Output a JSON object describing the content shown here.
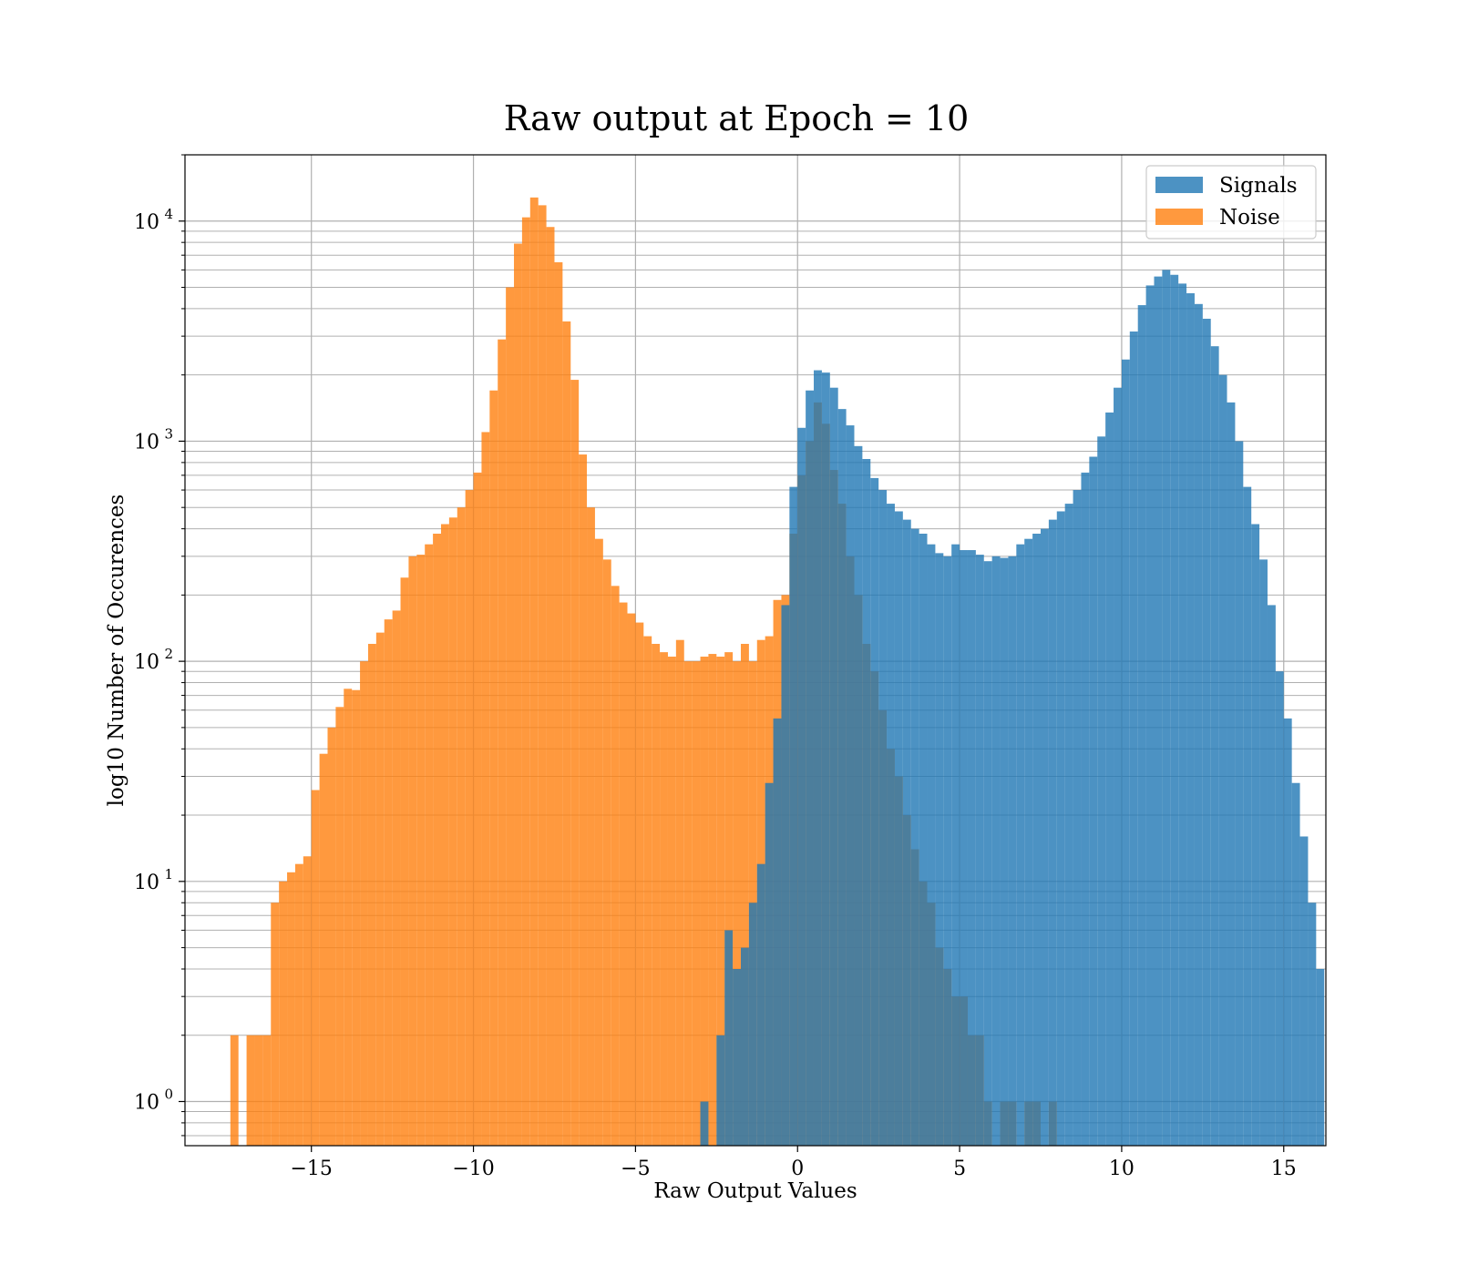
{
  "chart_data": {
    "type": "bar",
    "title": "Raw output at Epoch = 10",
    "xlabel": "Raw Output Values",
    "ylabel": "log10 Number of Occurences",
    "xlim": [
      -18.9,
      16.3
    ],
    "ylim": [
      0.63,
      20000
    ],
    "yscale": "log",
    "xticks": [
      -15,
      -10,
      -5,
      0,
      5,
      10,
      15
    ],
    "xtick_labels": [
      "−15",
      "−10",
      "−5",
      "0",
      "5",
      "10",
      "15"
    ],
    "yticks": [
      {
        "value": 1,
        "base": "10",
        "exp": "0"
      },
      {
        "value": 10,
        "base": "10",
        "exp": "1"
      },
      {
        "value": 100,
        "base": "10",
        "exp": "2"
      },
      {
        "value": 1000,
        "base": "10",
        "exp": "3"
      },
      {
        "value": 10000,
        "base": "10",
        "exp": "4"
      }
    ],
    "grid": true,
    "legend_position": "top-right",
    "colors": {
      "signals": "#1f77b4",
      "noise": "#ff7f0e",
      "grid": "#b0b0b0"
    },
    "bin_width": 0.25,
    "series": [
      {
        "name": "Signals",
        "color": "#1f77b4",
        "opacity": 0.8,
        "bins": [
          {
            "x": -3.0,
            "y": 1
          },
          {
            "x": -2.5,
            "y": 2
          },
          {
            "x": -2.25,
            "y": 6
          },
          {
            "x": -2.0,
            "y": 4
          },
          {
            "x": -1.75,
            "y": 5
          },
          {
            "x": -1.5,
            "y": 8
          },
          {
            "x": -1.25,
            "y": 12
          },
          {
            "x": -1.0,
            "y": 28
          },
          {
            "x": -0.75,
            "y": 55
          },
          {
            "x": -0.5,
            "y": 180
          },
          {
            "x": -0.25,
            "y": 620
          },
          {
            "x": 0.0,
            "y": 1150
          },
          {
            "x": 0.25,
            "y": 1700
          },
          {
            "x": 0.5,
            "y": 2100
          },
          {
            "x": 0.75,
            "y": 2050
          },
          {
            "x": 1.0,
            "y": 1750
          },
          {
            "x": 1.25,
            "y": 1400
          },
          {
            "x": 1.5,
            "y": 1180
          },
          {
            "x": 1.75,
            "y": 950
          },
          {
            "x": 2.0,
            "y": 830
          },
          {
            "x": 2.25,
            "y": 680
          },
          {
            "x": 2.5,
            "y": 600
          },
          {
            "x": 2.75,
            "y": 520
          },
          {
            "x": 3.0,
            "y": 480
          },
          {
            "x": 3.25,
            "y": 440
          },
          {
            "x": 3.5,
            "y": 400
          },
          {
            "x": 3.75,
            "y": 380
          },
          {
            "x": 4.0,
            "y": 340
          },
          {
            "x": 4.25,
            "y": 310
          },
          {
            "x": 4.5,
            "y": 300
          },
          {
            "x": 4.75,
            "y": 340
          },
          {
            "x": 5.0,
            "y": 320
          },
          {
            "x": 5.25,
            "y": 320
          },
          {
            "x": 5.5,
            "y": 305
          },
          {
            "x": 5.75,
            "y": 285
          },
          {
            "x": 6.0,
            "y": 300
          },
          {
            "x": 6.25,
            "y": 295
          },
          {
            "x": 6.5,
            "y": 300
          },
          {
            "x": 6.75,
            "y": 340
          },
          {
            "x": 7.0,
            "y": 360
          },
          {
            "x": 7.25,
            "y": 380
          },
          {
            "x": 7.5,
            "y": 400
          },
          {
            "x": 7.75,
            "y": 440
          },
          {
            "x": 8.0,
            "y": 480
          },
          {
            "x": 8.25,
            "y": 520
          },
          {
            "x": 8.5,
            "y": 600
          },
          {
            "x": 8.75,
            "y": 720
          },
          {
            "x": 9.0,
            "y": 850
          },
          {
            "x": 9.25,
            "y": 1050
          },
          {
            "x": 9.5,
            "y": 1350
          },
          {
            "x": 9.75,
            "y": 1750
          },
          {
            "x": 10.0,
            "y": 2350
          },
          {
            "x": 10.25,
            "y": 3150
          },
          {
            "x": 10.5,
            "y": 4150
          },
          {
            "x": 10.75,
            "y": 5100
          },
          {
            "x": 11.0,
            "y": 5600
          },
          {
            "x": 11.25,
            "y": 6000
          },
          {
            "x": 11.5,
            "y": 5700
          },
          {
            "x": 11.75,
            "y": 5200
          },
          {
            "x": 12.0,
            "y": 4700
          },
          {
            "x": 12.25,
            "y": 4200
          },
          {
            "x": 12.5,
            "y": 3600
          },
          {
            "x": 12.75,
            "y": 2700
          },
          {
            "x": 13.0,
            "y": 2000
          },
          {
            "x": 13.25,
            "y": 1500
          },
          {
            "x": 13.5,
            "y": 1000
          },
          {
            "x": 13.75,
            "y": 620
          },
          {
            "x": 14.0,
            "y": 420
          },
          {
            "x": 14.25,
            "y": 290
          },
          {
            "x": 14.5,
            "y": 180
          },
          {
            "x": 14.75,
            "y": 90
          },
          {
            "x": 15.0,
            "y": 55
          },
          {
            "x": 15.25,
            "y": 28
          },
          {
            "x": 15.5,
            "y": 16
          },
          {
            "x": 15.75,
            "y": 8
          },
          {
            "x": 16.0,
            "y": 4
          }
        ]
      },
      {
        "name": "Noise",
        "color": "#ff7f0e",
        "opacity": 0.8,
        "bins": [
          {
            "x": -17.5,
            "y": 2
          },
          {
            "x": -17.0,
            "y": 2
          },
          {
            "x": -16.75,
            "y": 2
          },
          {
            "x": -16.5,
            "y": 2
          },
          {
            "x": -16.25,
            "y": 8
          },
          {
            "x": -16.0,
            "y": 10
          },
          {
            "x": -15.75,
            "y": 11
          },
          {
            "x": -15.5,
            "y": 12
          },
          {
            "x": -15.25,
            "y": 13
          },
          {
            "x": -15.0,
            "y": 26
          },
          {
            "x": -14.75,
            "y": 38
          },
          {
            "x": -14.5,
            "y": 50
          },
          {
            "x": -14.25,
            "y": 62
          },
          {
            "x": -14.0,
            "y": 75
          },
          {
            "x": -13.75,
            "y": 74
          },
          {
            "x": -13.5,
            "y": 100
          },
          {
            "x": -13.25,
            "y": 120
          },
          {
            "x": -13.0,
            "y": 135
          },
          {
            "x": -12.75,
            "y": 155
          },
          {
            "x": -12.5,
            "y": 170
          },
          {
            "x": -12.25,
            "y": 240
          },
          {
            "x": -12.0,
            "y": 300
          },
          {
            "x": -11.75,
            "y": 305
          },
          {
            "x": -11.5,
            "y": 340
          },
          {
            "x": -11.25,
            "y": 380
          },
          {
            "x": -11.0,
            "y": 420
          },
          {
            "x": -10.75,
            "y": 450
          },
          {
            "x": -10.5,
            "y": 500
          },
          {
            "x": -10.25,
            "y": 600
          },
          {
            "x": -10.0,
            "y": 720
          },
          {
            "x": -9.75,
            "y": 1100
          },
          {
            "x": -9.5,
            "y": 1700
          },
          {
            "x": -9.25,
            "y": 2900
          },
          {
            "x": -9.0,
            "y": 5000
          },
          {
            "x": -8.75,
            "y": 7900
          },
          {
            "x": -8.5,
            "y": 10400
          },
          {
            "x": -8.25,
            "y": 12800
          },
          {
            "x": -8.0,
            "y": 11800
          },
          {
            "x": -7.75,
            "y": 9400
          },
          {
            "x": -7.5,
            "y": 6500
          },
          {
            "x": -7.25,
            "y": 3500
          },
          {
            "x": -7.0,
            "y": 1900
          },
          {
            "x": -6.75,
            "y": 870
          },
          {
            "x": -6.5,
            "y": 500
          },
          {
            "x": -6.25,
            "y": 360
          },
          {
            "x": -6.0,
            "y": 290
          },
          {
            "x": -5.75,
            "y": 220
          },
          {
            "x": -5.5,
            "y": 185
          },
          {
            "x": -5.25,
            "y": 165
          },
          {
            "x": -5.0,
            "y": 150
          },
          {
            "x": -4.75,
            "y": 130
          },
          {
            "x": -4.5,
            "y": 120
          },
          {
            "x": -4.25,
            "y": 110
          },
          {
            "x": -4.0,
            "y": 105
          },
          {
            "x": -3.75,
            "y": 125
          },
          {
            "x": -3.5,
            "y": 100
          },
          {
            "x": -3.25,
            "y": 100
          },
          {
            "x": -3.0,
            "y": 105
          },
          {
            "x": -2.75,
            "y": 108
          },
          {
            "x": -2.5,
            "y": 105
          },
          {
            "x": -2.25,
            "y": 110
          },
          {
            "x": -2.0,
            "y": 100
          },
          {
            "x": -1.75,
            "y": 120
          },
          {
            "x": -1.5,
            "y": 100
          },
          {
            "x": -1.25,
            "y": 125
          },
          {
            "x": -1.0,
            "y": 130
          },
          {
            "x": -0.75,
            "y": 190
          },
          {
            "x": -0.5,
            "y": 200
          },
          {
            "x": -0.25,
            "y": 380
          },
          {
            "x": 0.0,
            "y": 700
          },
          {
            "x": 0.25,
            "y": 1000
          },
          {
            "x": 0.5,
            "y": 1500
          },
          {
            "x": 0.75,
            "y": 1200
          },
          {
            "x": 1.0,
            "y": 740
          },
          {
            "x": 1.25,
            "y": 520
          },
          {
            "x": 1.5,
            "y": 300
          },
          {
            "x": 1.75,
            "y": 200
          },
          {
            "x": 2.0,
            "y": 120
          },
          {
            "x": 2.25,
            "y": 90
          },
          {
            "x": 2.5,
            "y": 60
          },
          {
            "x": 2.75,
            "y": 40
          },
          {
            "x": 3.0,
            "y": 30
          },
          {
            "x": 3.25,
            "y": 20
          },
          {
            "x": 3.5,
            "y": 14
          },
          {
            "x": 3.75,
            "y": 10
          },
          {
            "x": 4.0,
            "y": 8
          },
          {
            "x": 4.25,
            "y": 5
          },
          {
            "x": 4.5,
            "y": 4
          },
          {
            "x": 4.75,
            "y": 3
          },
          {
            "x": 5.0,
            "y": 3
          },
          {
            "x": 5.25,
            "y": 2
          },
          {
            "x": 5.5,
            "y": 2
          },
          {
            "x": 5.75,
            "y": 1
          },
          {
            "x": 6.25,
            "y": 1
          },
          {
            "x": 6.5,
            "y": 1
          },
          {
            "x": 7.0,
            "y": 1
          },
          {
            "x": 7.25,
            "y": 1
          },
          {
            "x": 7.75,
            "y": 1
          }
        ]
      }
    ]
  }
}
